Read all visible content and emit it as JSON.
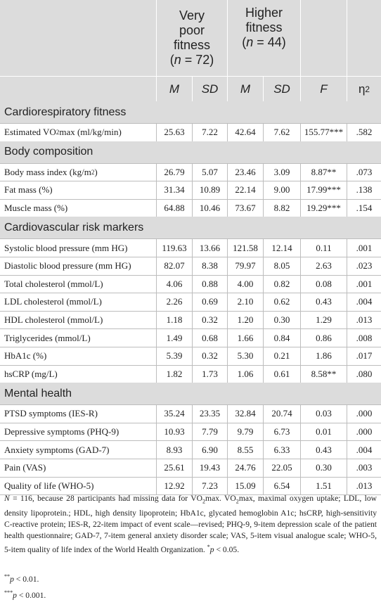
{
  "header": {
    "group_very_poor": {
      "line1": "Very",
      "line2": "poor",
      "line3": "fitness",
      "n_prefix": "(",
      "n_symbol": "n",
      "n_value": " = 72)"
    },
    "group_higher": {
      "line1": "Higher",
      "line2": "fitness",
      "n_prefix": "(",
      "n_symbol": "n",
      "n_value": " = 44)"
    },
    "stats": [
      "M",
      "SD",
      "M",
      "SD",
      "F"
    ],
    "eta": "η",
    "eta_sup": "2"
  },
  "sections": [
    {
      "title": "Cardiorespiratory fitness",
      "rows": [
        {
          "label": "Estimated VO2max (ml/kg/min)",
          "m1": "25.63",
          "sd1": "7.22",
          "m2": "42.64",
          "sd2": "7.62",
          "f": "155.77***",
          "eta": ".582"
        }
      ]
    },
    {
      "title": "Body composition",
      "rows": [
        {
          "label": "Body mass index (kg/m2)",
          "m1": "26.79",
          "sd1": "5.07",
          "m2": "23.46",
          "sd2": "3.09",
          "f": "8.87**",
          "eta": ".073"
        },
        {
          "label": "Fat mass (%)",
          "m1": "31.34",
          "sd1": "10.89",
          "m2": "22.14",
          "sd2": "9.00",
          "f": "17.99***",
          "eta": ".138"
        },
        {
          "label": "Muscle mass (%)",
          "m1": "64.88",
          "sd1": "10.46",
          "m2": "73.67",
          "sd2": "8.82",
          "f": "19.29***",
          "eta": ".154"
        }
      ]
    },
    {
      "title": "Cardiovascular risk markers",
      "rows": [
        {
          "label": "Systolic blood pressure (mm HG)",
          "m1": "119.63",
          "sd1": "13.66",
          "m2": "121.58",
          "sd2": "12.14",
          "f": "0.11",
          "eta": ".001"
        },
        {
          "label": "Diastolic blood pressure (mm HG)",
          "m1": "82.07",
          "sd1": "8.38",
          "m2": "79.97",
          "sd2": "8.05",
          "f": "2.63",
          "eta": ".023"
        },
        {
          "label": "Total cholesterol (mmol/L)",
          "m1": "4.06",
          "sd1": "0.88",
          "m2": "4.00",
          "sd2": "0.82",
          "f": "0.08",
          "eta": ".001"
        },
        {
          "label": "LDL cholesterol (mmol/L)",
          "m1": "2.26",
          "sd1": "0.69",
          "m2": "2.10",
          "sd2": "0.62",
          "f": "0.43",
          "eta": ".004"
        },
        {
          "label": "HDL cholesterol (mmol/L)",
          "m1": "1.18",
          "sd1": "0.32",
          "m2": "1.20",
          "sd2": "0.30",
          "f": "1.29",
          "eta": ".013"
        },
        {
          "label": "Triglycerides (mmol/L)",
          "m1": "1.49",
          "sd1": "0.68",
          "m2": "1.66",
          "sd2": "0.84",
          "f": "0.86",
          "eta": ".008"
        },
        {
          "label": "HbA1c (%)",
          "m1": "5.39",
          "sd1": "0.32",
          "m2": "5.30",
          "sd2": "0.21",
          "f": "1.86",
          "eta": ".017"
        },
        {
          "label": "hsCRP (mg/L)",
          "m1": "1.82",
          "sd1": "1.73",
          "m2": "1.06",
          "sd2": "0.61",
          "f": "8.58**",
          "eta": ".080"
        }
      ]
    },
    {
      "title": "Mental health",
      "rows": [
        {
          "label": "PTSD symptoms (IES-R)",
          "m1": "35.24",
          "sd1": "23.35",
          "m2": "32.84",
          "sd2": "20.74",
          "f": "0.03",
          "eta": ".000"
        },
        {
          "label": "Depressive symptoms (PHQ-9)",
          "m1": "10.93",
          "sd1": "7.79",
          "m2": "9.79",
          "sd2": "6.73",
          "f": "0.01",
          "eta": ".000"
        },
        {
          "label": "Anxiety symptoms (GAD-7)",
          "m1": "8.93",
          "sd1": "6.90",
          "m2": "8.55",
          "sd2": "6.33",
          "f": "0.43",
          "eta": ".004"
        },
        {
          "label": "Pain (VAS)",
          "m1": "25.61",
          "sd1": "19.43",
          "m2": "24.76",
          "sd2": "22.05",
          "f": "0.30",
          "eta": ".003"
        },
        {
          "label": "Quality of life (WHO-5)",
          "m1": "12.92",
          "sd1": "7.23",
          "m2": "15.09",
          "sd2": "6.54",
          "f": "1.51",
          "eta": ".013"
        }
      ]
    }
  ],
  "notes": {
    "main": "N = 116, because 28 participants had missing data for VO2max. VO2max, maximal oxygen uptake; LDL, low density lipoprotein.; HDL, high density lipoprotein; HbA1c, glycated hemoglobin A1c; hsCRP, high-sensitivity C-reactive protein; IES-R, 22-item impact of event scale—revised; PHQ-9, 9-item depression scale of the patient health questionnaire; GAD-7, 7-item general anxiety disorder scale; VAS, 5-item visual analogue scale; WHO-5, 5-item quality of life index of the World Health Organization. *p < 0.05.",
    "p01": "**p < 0.01.",
    "p001": "***p < 0.001."
  }
}
